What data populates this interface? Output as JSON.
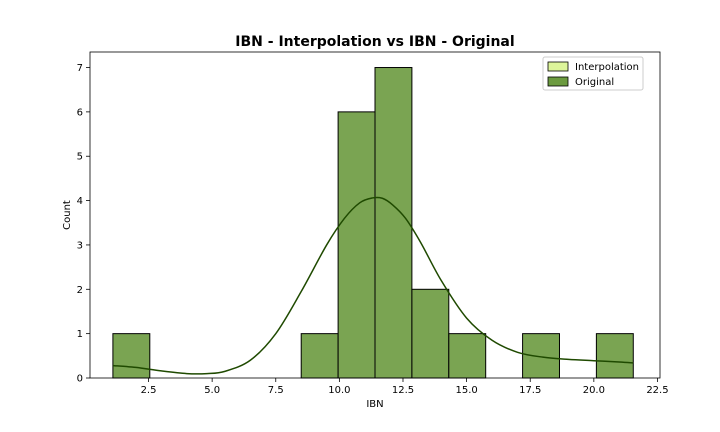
{
  "chart_data": {
    "type": "bar",
    "title": "IBN - Interpolation vs IBN - Original",
    "xlabel": "IBN",
    "ylabel": "Count",
    "xlim": [
      0.2,
      22.6
    ],
    "ylim": [
      0,
      7.35
    ],
    "xticks": [
      2.5,
      5.0,
      7.5,
      10.0,
      12.5,
      15.0,
      17.5,
      20.0,
      22.5
    ],
    "yticks": [
      0,
      1,
      2,
      3,
      4,
      5,
      6,
      7
    ],
    "legend_position": "top-right",
    "series": [
      {
        "name": "Interpolation",
        "color": "#ddf59a",
        "bins": []
      },
      {
        "name": "Original",
        "color": "#6b9a3f",
        "bins": [
          {
            "x0": 1.1,
            "x1": 2.55,
            "count": 1
          },
          {
            "x0": 2.55,
            "x1": 4.0,
            "count": 0
          },
          {
            "x0": 4.0,
            "x1": 5.45,
            "count": 0
          },
          {
            "x0": 5.45,
            "x1": 6.9,
            "count": 0
          },
          {
            "x0": 6.9,
            "x1": 8.35,
            "count": 0
          },
          {
            "x0": 8.5,
            "x1": 9.95,
            "count": 1
          },
          {
            "x0": 9.95,
            "x1": 11.4,
            "count": 6
          },
          {
            "x0": 11.4,
            "x1": 12.85,
            "count": 7
          },
          {
            "x0": 12.85,
            "x1": 14.3,
            "count": 2
          },
          {
            "x0": 14.3,
            "x1": 15.75,
            "count": 1
          },
          {
            "x0": 15.75,
            "x1": 17.2,
            "count": 0
          },
          {
            "x0": 17.2,
            "x1": 18.65,
            "count": 1
          },
          {
            "x0": 18.65,
            "x1": 20.1,
            "count": 0
          },
          {
            "x0": 20.1,
            "x1": 21.55,
            "count": 1
          }
        ],
        "kde": {
          "color": "#1f4a00",
          "x": [
            1.1,
            2.0,
            3.0,
            4.0,
            4.8,
            5.5,
            6.5,
            7.5,
            8.5,
            9.5,
            10.2,
            10.8,
            11.3,
            11.7,
            12.1,
            12.6,
            13.2,
            14.0,
            15.0,
            16.0,
            17.0,
            18.0,
            19.0,
            20.0,
            21.0,
            21.55
          ],
          "y": [
            0.28,
            0.24,
            0.16,
            0.1,
            0.1,
            0.15,
            0.4,
            1.0,
            1.95,
            3.0,
            3.6,
            3.95,
            4.06,
            4.05,
            3.9,
            3.6,
            3.05,
            2.2,
            1.35,
            0.85,
            0.58,
            0.47,
            0.42,
            0.39,
            0.36,
            0.34
          ]
        }
      }
    ]
  }
}
